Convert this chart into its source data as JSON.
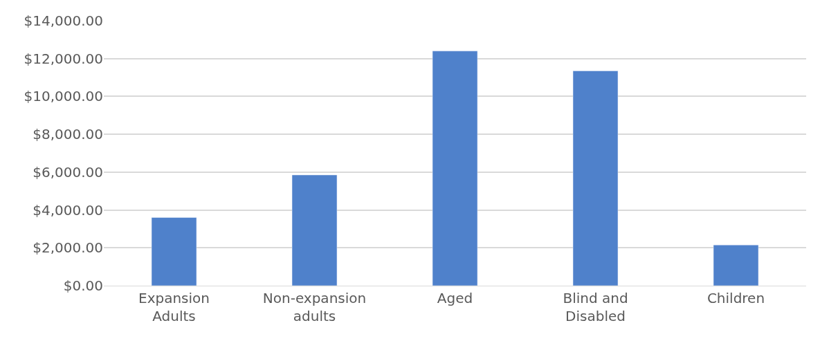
{
  "chart_data": {
    "type": "bar",
    "categories": [
      "Expansion Adults",
      "Non-expansion adults",
      "Aged",
      "Blind and Disabled",
      "Children"
    ],
    "values": [
      3600,
      5850,
      12400,
      11350,
      2150
    ],
    "color": "#4f81cb",
    "ylim": [
      0,
      14000
    ],
    "yticks": [
      {
        "value": 0,
        "label": "$0.00"
      },
      {
        "value": 2000,
        "label": "$2,000.00"
      },
      {
        "value": 4000,
        "label": "$4,000.00"
      },
      {
        "value": 6000,
        "label": "$6,000.00"
      },
      {
        "value": 8000,
        "label": "$8,000.00"
      },
      {
        "value": 10000,
        "label": "$10,000.00"
      },
      {
        "value": 12000,
        "label": "$12,000.00"
      },
      {
        "value": 14000,
        "label": "$14,000.00"
      }
    ],
    "grid": "y"
  }
}
